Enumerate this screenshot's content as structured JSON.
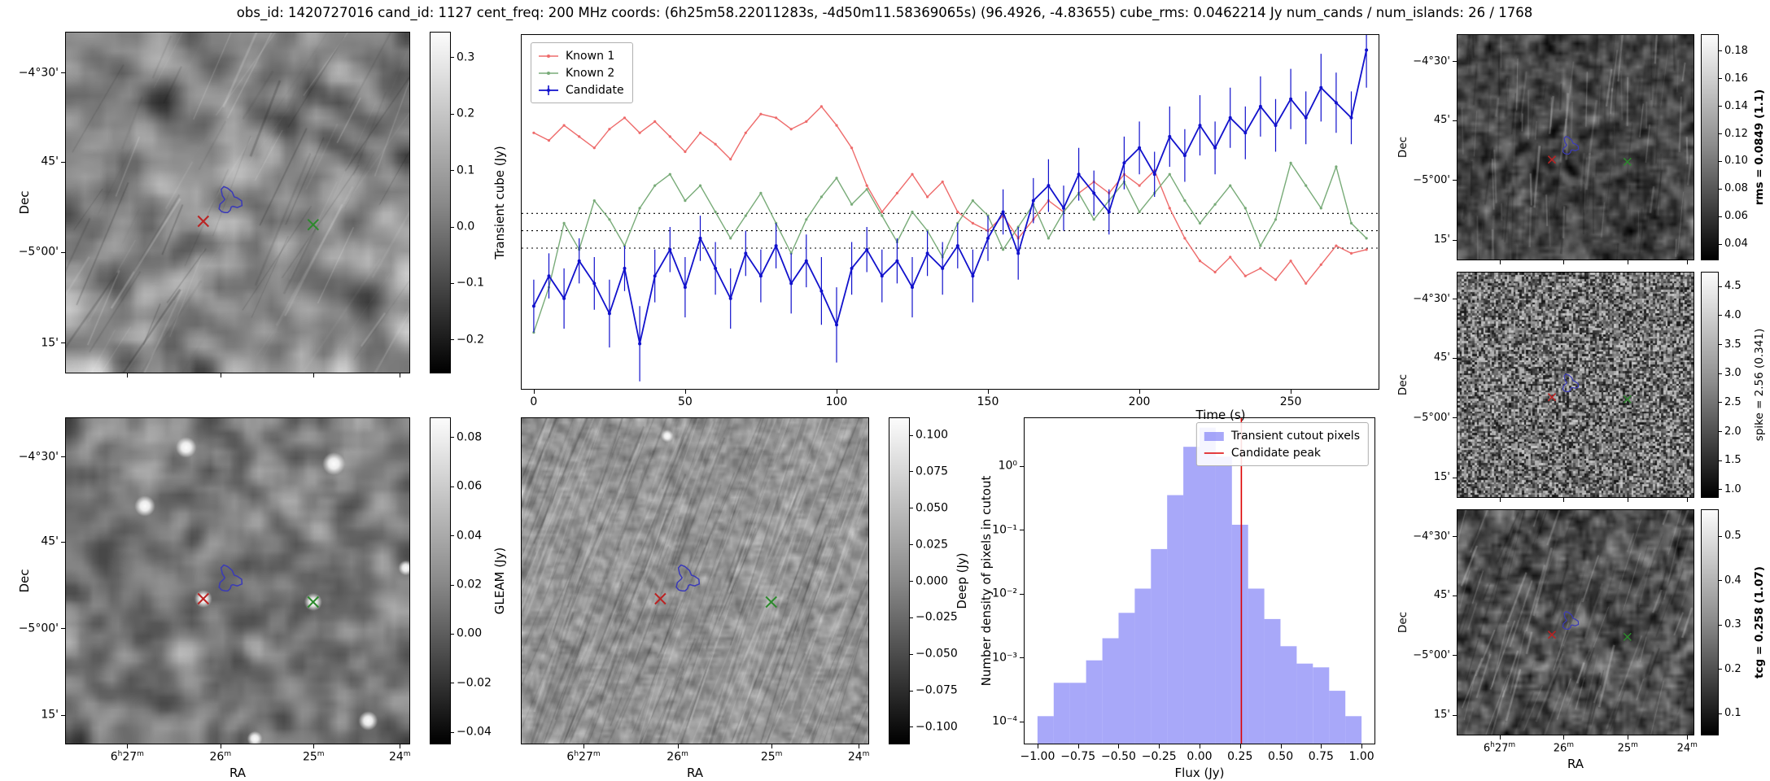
{
  "title": "obs_id: 1420727016 cand_id: 1127 cent_freq: 200 MHz coords: (6h25m58.22011283s, -4d50m11.58369065s) (96.4926, -4.83655) cube_rms: 0.0462214 Jy num_cands / num_islands: 26 / 1768",
  "labels": {
    "dec": "Dec",
    "ra": "RA",
    "time": "Time (s)",
    "flux": "Flux (Jy)",
    "hist_y": "Number density of pixels in cutout"
  },
  "axis_ticks": {
    "dec_labels": [
      "−4°30'",
      "45'",
      "−5°00'",
      "15'"
    ],
    "dec_fracs": [
      0.12,
      0.38,
      0.645,
      0.91
    ],
    "ra_labels": [
      "6h27m",
      "26m",
      "25m",
      "24m"
    ],
    "ra_fracs": [
      0.18,
      0.45,
      0.72,
      0.97
    ]
  },
  "panels": {
    "transient": {
      "cbar_label": "Transient cube (Jy)",
      "cmin": -0.26,
      "cmax": 0.345,
      "cbar_tick_values": [
        0.3,
        0.2,
        0.1,
        0.0,
        -0.1,
        -0.2
      ],
      "cbar_tick_labels": [
        "0.3",
        "0.2",
        "0.1",
        "0.0",
        "−0.1",
        "−0.2"
      ]
    },
    "gleam": {
      "cbar_label": "GLEAM (Jy)",
      "cmin": -0.045,
      "cmax": 0.088,
      "cbar_tick_values": [
        0.08,
        0.06,
        0.04,
        0.02,
        0.0,
        -0.02,
        -0.04
      ],
      "cbar_tick_labels": [
        "0.08",
        "0.06",
        "0.04",
        "0.02",
        "0.00",
        "−0.02",
        "−0.04"
      ]
    },
    "deep": {
      "cbar_label": "Deep (Jy)",
      "cmin": -0.112,
      "cmax": 0.112,
      "cbar_tick_values": [
        0.1,
        0.075,
        0.05,
        0.025,
        0.0,
        -0.025,
        -0.05,
        -0.075,
        -0.1
      ],
      "cbar_tick_labels": [
        "0.100",
        "0.075",
        "0.050",
        "0.025",
        "0.000",
        "−0.025",
        "−0.050",
        "−0.075",
        "−0.100"
      ]
    },
    "rms": {
      "cbar_label": "rms = 0.0849 (1.1)",
      "cmin": 0.028,
      "cmax": 0.192,
      "cbar_tick_values": [
        0.18,
        0.16,
        0.14,
        0.12,
        0.1,
        0.08,
        0.06,
        0.04
      ],
      "cbar_tick_labels": [
        "0.18",
        "0.16",
        "0.14",
        "0.12",
        "0.10",
        "0.08",
        "0.06",
        "0.04"
      ]
    },
    "spike": {
      "cbar_label": "spike = 2.56 (0.341)",
      "cmin": 0.85,
      "cmax": 4.75,
      "cbar_tick_values": [
        4.5,
        4.0,
        3.5,
        3.0,
        2.5,
        2.0,
        1.5,
        1.0
      ],
      "cbar_tick_labels": [
        "4.5",
        "4.0",
        "3.5",
        "3.0",
        "2.5",
        "2.0",
        "1.5",
        "1.0"
      ]
    },
    "tcg": {
      "cbar_label": "tcg = 0.258 (1.07)",
      "cmin": 0.05,
      "cmax": 0.56,
      "cbar_tick_values": [
        0.5,
        0.4,
        0.3,
        0.2,
        0.1
      ],
      "cbar_tick_labels": [
        "0.5",
        "0.4",
        "0.3",
        "0.2",
        "0.1"
      ]
    }
  },
  "markers": {
    "red_x": {
      "fx": 0.4,
      "fy": 0.555,
      "color": "#bb2222"
    },
    "green_x": {
      "fx": 0.72,
      "fy": 0.565,
      "color": "#2c8a2c"
    },
    "contour": {
      "fx": 0.475,
      "fy": 0.495,
      "color": "#3a3ab8"
    }
  },
  "chart_data": [
    {
      "type": "line",
      "title": "",
      "xlabel": "Time (s)",
      "ylabel": "",
      "xlim": [
        -4,
        279
      ],
      "ylim": [
        -0.42,
        0.52
      ],
      "xticks": [
        0,
        50,
        100,
        150,
        200,
        250
      ],
      "xtick_labels": [
        "0",
        "50",
        "100",
        "150",
        "200",
        "250"
      ],
      "hlines": [
        0.0462,
        0.0,
        -0.0462
      ],
      "legend_position": "upper left",
      "x": [
        0,
        5,
        10,
        15,
        20,
        25,
        30,
        35,
        40,
        45,
        50,
        55,
        60,
        65,
        70,
        75,
        80,
        85,
        90,
        95,
        100,
        105,
        110,
        115,
        120,
        125,
        130,
        135,
        140,
        145,
        150,
        155,
        160,
        165,
        170,
        175,
        180,
        185,
        190,
        195,
        200,
        205,
        210,
        215,
        220,
        225,
        230,
        235,
        240,
        245,
        250,
        255,
        260,
        265,
        270,
        275
      ],
      "series": [
        {
          "name": "Known 1",
          "color": "#ee6b6b",
          "y": [
            0.26,
            0.24,
            0.28,
            0.25,
            0.22,
            0.27,
            0.3,
            0.26,
            0.29,
            0.25,
            0.21,
            0.26,
            0.23,
            0.19,
            0.26,
            0.31,
            0.3,
            0.27,
            0.29,
            0.33,
            0.28,
            0.22,
            0.12,
            0.05,
            0.1,
            0.15,
            0.09,
            0.13,
            0.05,
            0.02,
            0.0,
            0.04,
            -0.02,
            0.03,
            0.08,
            0.05,
            0.1,
            0.13,
            0.1,
            0.15,
            0.12,
            0.16,
            0.06,
            -0.02,
            -0.08,
            -0.11,
            -0.07,
            -0.12,
            -0.1,
            -0.13,
            -0.08,
            -0.14,
            -0.09,
            -0.04,
            -0.06,
            -0.05
          ]
        },
        {
          "name": "Known 2",
          "color": "#78ab78",
          "y": [
            -0.27,
            -0.15,
            0.02,
            -0.05,
            0.08,
            0.03,
            -0.04,
            0.06,
            0.12,
            0.15,
            0.08,
            0.12,
            0.05,
            -0.02,
            0.04,
            0.1,
            0.02,
            -0.06,
            0.03,
            0.09,
            0.14,
            0.07,
            0.11,
            0.04,
            -0.03,
            0.05,
            0.0,
            -0.07,
            0.02,
            0.08,
            0.04,
            -0.05,
            0.01,
            0.07,
            -0.02,
            0.05,
            0.1,
            0.03,
            0.08,
            0.13,
            0.05,
            0.1,
            0.15,
            0.08,
            0.02,
            0.07,
            0.12,
            0.06,
            -0.04,
            0.03,
            0.18,
            0.12,
            0.06,
            0.17,
            0.02,
            -0.02
          ]
        },
        {
          "name": "Candidate",
          "color": "#1111cc",
          "y": [
            -0.2,
            -0.12,
            -0.18,
            -0.08,
            -0.14,
            -0.22,
            -0.1,
            -0.3,
            -0.12,
            -0.05,
            -0.15,
            -0.02,
            -0.1,
            -0.18,
            -0.06,
            -0.12,
            -0.04,
            -0.14,
            -0.08,
            -0.16,
            -0.25,
            -0.1,
            -0.05,
            -0.12,
            -0.08,
            -0.15,
            -0.06,
            -0.1,
            -0.04,
            -0.12,
            -0.02,
            0.05,
            -0.06,
            0.08,
            0.12,
            0.06,
            0.15,
            0.1,
            0.05,
            0.18,
            0.22,
            0.15,
            0.25,
            0.2,
            0.28,
            0.22,
            0.3,
            0.26,
            0.33,
            0.28,
            0.35,
            0.3,
            0.38,
            0.34,
            0.3,
            0.48
          ],
          "yerr": [
            0.07,
            0.06,
            0.08,
            0.06,
            0.07,
            0.09,
            0.06,
            0.1,
            0.07,
            0.06,
            0.08,
            0.06,
            0.07,
            0.08,
            0.06,
            0.07,
            0.06,
            0.08,
            0.07,
            0.09,
            0.1,
            0.07,
            0.06,
            0.07,
            0.06,
            0.08,
            0.06,
            0.07,
            0.06,
            0.07,
            0.06,
            0.06,
            0.07,
            0.06,
            0.07,
            0.06,
            0.07,
            0.06,
            0.06,
            0.07,
            0.07,
            0.06,
            0.08,
            0.07,
            0.08,
            0.07,
            0.08,
            0.07,
            0.08,
            0.07,
            0.08,
            0.07,
            0.09,
            0.08,
            0.07,
            0.1
          ]
        }
      ]
    },
    {
      "type": "bar",
      "xlabel": "Flux (Jy)",
      "ylabel": "Number density of pixels in cutout",
      "ylog": true,
      "xlim": [
        -1.08,
        1.08
      ],
      "ylim_exp": [
        -4.35,
        0.75
      ],
      "bin_edges": [
        -1.0,
        -0.9,
        -0.8,
        -0.7,
        -0.6,
        -0.5,
        -0.4,
        -0.3,
        -0.2,
        -0.1,
        0.0,
        0.1,
        0.2,
        0.3,
        0.4,
        0.5,
        0.6,
        0.7,
        0.8,
        0.9,
        1.0
      ],
      "counts": [
        0.00012,
        0.0004,
        0.0004,
        0.0009,
        0.002,
        0.005,
        0.012,
        0.05,
        0.35,
        2.0,
        4.0,
        1.4,
        0.12,
        0.012,
        0.004,
        0.0015,
        0.0008,
        0.0007,
        0.0003,
        0.00012
      ],
      "bar_color": "rgba(110,110,245,0.6)",
      "series_label": "Transient cutout pixels",
      "vline": {
        "value": 0.258,
        "color": "#dd0000",
        "label": "Candidate peak"
      },
      "xticks": [
        -1.0,
        -0.75,
        -0.5,
        -0.25,
        0.0,
        0.25,
        0.5,
        0.75,
        1.0
      ],
      "xtick_labels": [
        "−1.00",
        "−0.75",
        "−0.50",
        "−0.25",
        "0.00",
        "0.25",
        "0.50",
        "0.75",
        "1.00"
      ],
      "ytick_exps": [
        0,
        -1,
        -2,
        -3,
        -4
      ],
      "ytick_labels": [
        "10⁰",
        "10⁻¹",
        "10⁻²",
        "10⁻³",
        "10⁻⁴"
      ],
      "legend_position": "upper right"
    }
  ]
}
